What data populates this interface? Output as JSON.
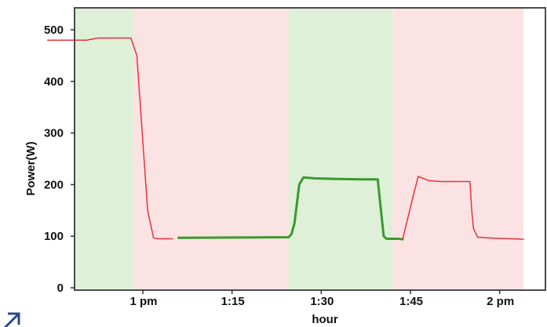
{
  "chart_data": {
    "type": "line",
    "title": "",
    "xlabel": "hour",
    "ylabel": "Power(W)",
    "ylim": [
      0,
      550
    ],
    "xlim": [
      "12:44",
      "2:04"
    ],
    "grid": false,
    "x_ticks": [
      {
        "label": "1 pm",
        "time": "1:00"
      },
      {
        "label": "1:15",
        "time": "1:15"
      },
      {
        "label": "1:30",
        "time": "1:30"
      },
      {
        "label": "1:45",
        "time": "1:45"
      },
      {
        "label": "2 pm",
        "time": "2:00"
      }
    ],
    "y_ticks": [
      0,
      100,
      200,
      300,
      400,
      500
    ],
    "bands": [
      {
        "start": "12:44",
        "end": "12:58.5",
        "color": "#dff0d8"
      },
      {
        "start": "12:58.5",
        "end": "1:24.5",
        "color": "#fbe3e3"
      },
      {
        "start": "1:24.5",
        "end": "1:42",
        "color": "#dff0d8"
      },
      {
        "start": "1:42",
        "end": "2:04",
        "color": "#fbe3e3"
      }
    ],
    "segments": [
      {
        "color": "#e8323c",
        "width": 1.5,
        "points": [
          [
            "12:44",
            480
          ],
          [
            "12:50.5",
            480
          ],
          [
            "12:52.5",
            484
          ],
          [
            "12:55",
            484
          ],
          [
            "12:58",
            484
          ],
          [
            "12:59",
            450
          ],
          [
            "13:00.8",
            150
          ],
          [
            "13:01.8",
            97
          ],
          [
            "13:02.5",
            95
          ],
          [
            "13:05",
            95
          ]
        ]
      },
      {
        "color": "#3a9a2e",
        "width": 3,
        "points": [
          [
            "13:06",
            97
          ],
          [
            "13:24.5",
            98
          ],
          [
            "13:25",
            104
          ],
          [
            "13:25.5",
            125
          ],
          [
            "13:26.3",
            200
          ],
          [
            "13:27",
            214
          ],
          [
            "13:29",
            212
          ],
          [
            "13:33",
            211
          ],
          [
            "13:37",
            210
          ],
          [
            "13:39.5",
            210
          ],
          [
            "13:40.5",
            100
          ],
          [
            "13:41",
            95
          ],
          [
            "13:43",
            95
          ],
          [
            "13:43.7",
            94
          ]
        ]
      },
      {
        "color": "#e8323c",
        "width": 1.5,
        "points": [
          [
            "13:43.7",
            94
          ],
          [
            "13:45.5",
            180
          ],
          [
            "13:46.3",
            216
          ],
          [
            "13:48",
            208
          ],
          [
            "13:50",
            206
          ],
          [
            "13:55",
            206
          ],
          [
            "13:55.3",
            150
          ],
          [
            "13:55.6",
            115
          ],
          [
            "13:56.3",
            98
          ],
          [
            "13:59",
            96
          ],
          [
            "14:02",
            95
          ],
          [
            "14:04",
            94
          ]
        ]
      }
    ],
    "colors": {
      "on_band": "#dff0d8",
      "off_band": "#fbe3e3",
      "on_line": "#3a9a2e",
      "off_line": "#e8323c",
      "frame": "#4a4a4a"
    }
  }
}
